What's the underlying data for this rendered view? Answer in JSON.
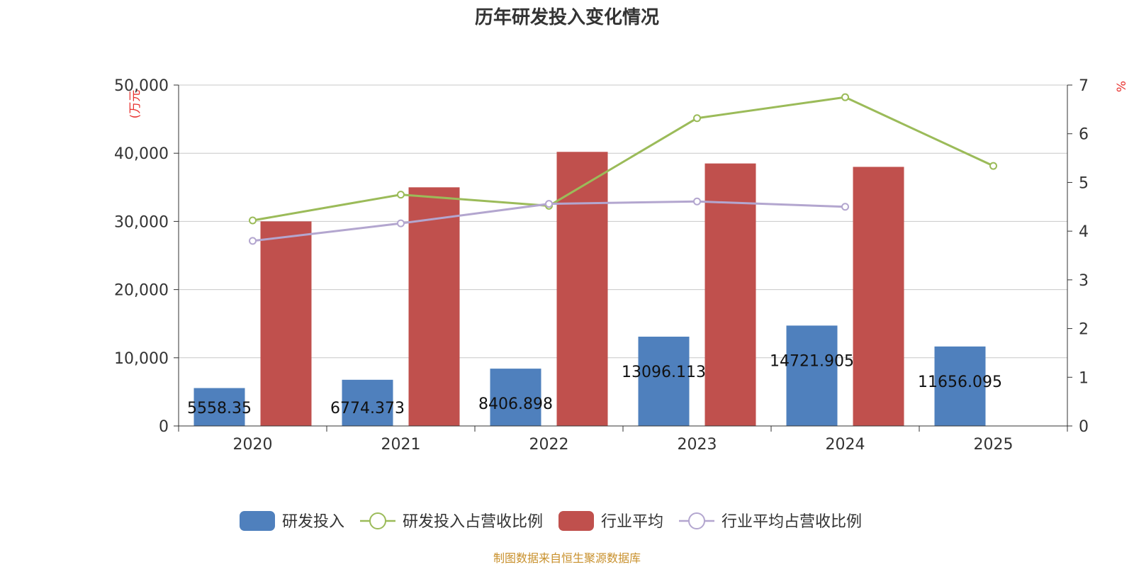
{
  "chart_data": {
    "type": "bar",
    "title": "历年研发投入变化情况",
    "categories": [
      "2020",
      "2021",
      "2022",
      "2023",
      "2024",
      "2025"
    ],
    "ylabel_left": "(万元",
    "ylabel_right": "%",
    "ylim_left": [
      0,
      50000
    ],
    "yticks_left": [
      "0",
      "10,000",
      "20,000",
      "30,000",
      "40,000",
      "50,000"
    ],
    "ylim_right": [
      0,
      7
    ],
    "yticks_right": [
      "0",
      "1",
      "2",
      "3",
      "4",
      "5",
      "6",
      "7"
    ],
    "grid": true,
    "legend_position": "bottom",
    "series": [
      {
        "name": "研发投入",
        "kind": "bar",
        "color": "#4f80bd",
        "values": [
          5558.35,
          6774.373,
          8406.898,
          13096.113,
          14721.905,
          11656.095
        ],
        "labels": [
          "5558.35",
          "6774.373",
          "8406.898",
          "13096.113",
          "14721.905",
          "11656.095"
        ]
      },
      {
        "name": "研发投入占营收比例",
        "kind": "line",
        "axis": "right",
        "color": "#9bbb59",
        "values": [
          4.22,
          4.75,
          4.52,
          6.32,
          6.75,
          5.34
        ]
      },
      {
        "name": "行业平均",
        "kind": "bar",
        "color": "#c0504d",
        "values": [
          30000,
          35000,
          40200,
          38500,
          38000,
          null
        ]
      },
      {
        "name": "行业平均占营收比例",
        "kind": "line",
        "axis": "right",
        "color": "#b3a6cf",
        "values": [
          3.8,
          4.16,
          4.56,
          4.61,
          4.5,
          null
        ]
      }
    ],
    "source": "制图数据来自恒生聚源数据库"
  }
}
